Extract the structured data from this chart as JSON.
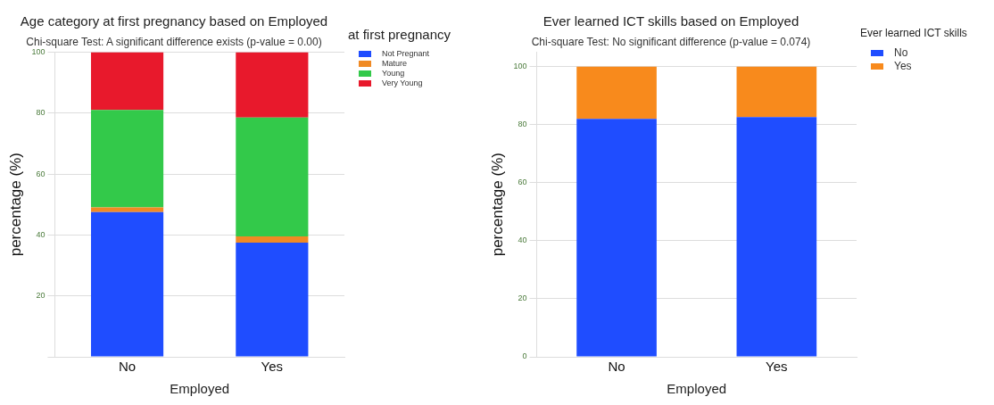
{
  "chart_data": [
    {
      "type": "bar",
      "stacked": true,
      "title": "Age category at first pregnancy based on Employed",
      "subtitle": "Chi-square Test: A significant difference exists (p-value = 0.00)",
      "xlabel": "Employed",
      "ylabel": "percentage (%)",
      "legend_title": "at first pregnancy",
      "categories": [
        "No",
        "Yes"
      ],
      "series": [
        {
          "name": "Not Pregnant",
          "color": "#1f4dff",
          "values": [
            47.5,
            37.5
          ]
        },
        {
          "name": "Mature",
          "color": "#f08a24",
          "values": [
            1.5,
            2
          ]
        },
        {
          "name": "Young",
          "color": "#33c94a",
          "values": [
            32,
            39
          ]
        },
        {
          "name": "Very Young",
          "color": "#e8192c",
          "values": [
            19,
            21.5
          ]
        }
      ],
      "ylim": [
        0,
        100
      ],
      "yticks": [
        {
          "value": 0,
          "label": null
        },
        20,
        40,
        60,
        80,
        100
      ],
      "grid": "y",
      "legend": "top right"
    },
    {
      "type": "bar",
      "stacked": true,
      "title": "Ever learned ICT skills based on Employed",
      "subtitle": "Chi-square Test: No significant difference (p-value = 0.074)",
      "xlabel": "Employed",
      "ylabel": "percentage (%)",
      "legend_title": "Ever learned ICT skills",
      "categories": [
        "No",
        "Yes"
      ],
      "series": [
        {
          "name": "No",
          "color": "#1f4dff",
          "values": [
            82,
            82.6
          ]
        },
        {
          "name": "Yes",
          "color": "#f88a1c",
          "values": [
            18,
            17.4
          ]
        }
      ],
      "ylim": [
        0,
        105
      ],
      "yticks": [
        0,
        20,
        40,
        60,
        80,
        100
      ],
      "grid": "y",
      "legend": "top right"
    }
  ]
}
